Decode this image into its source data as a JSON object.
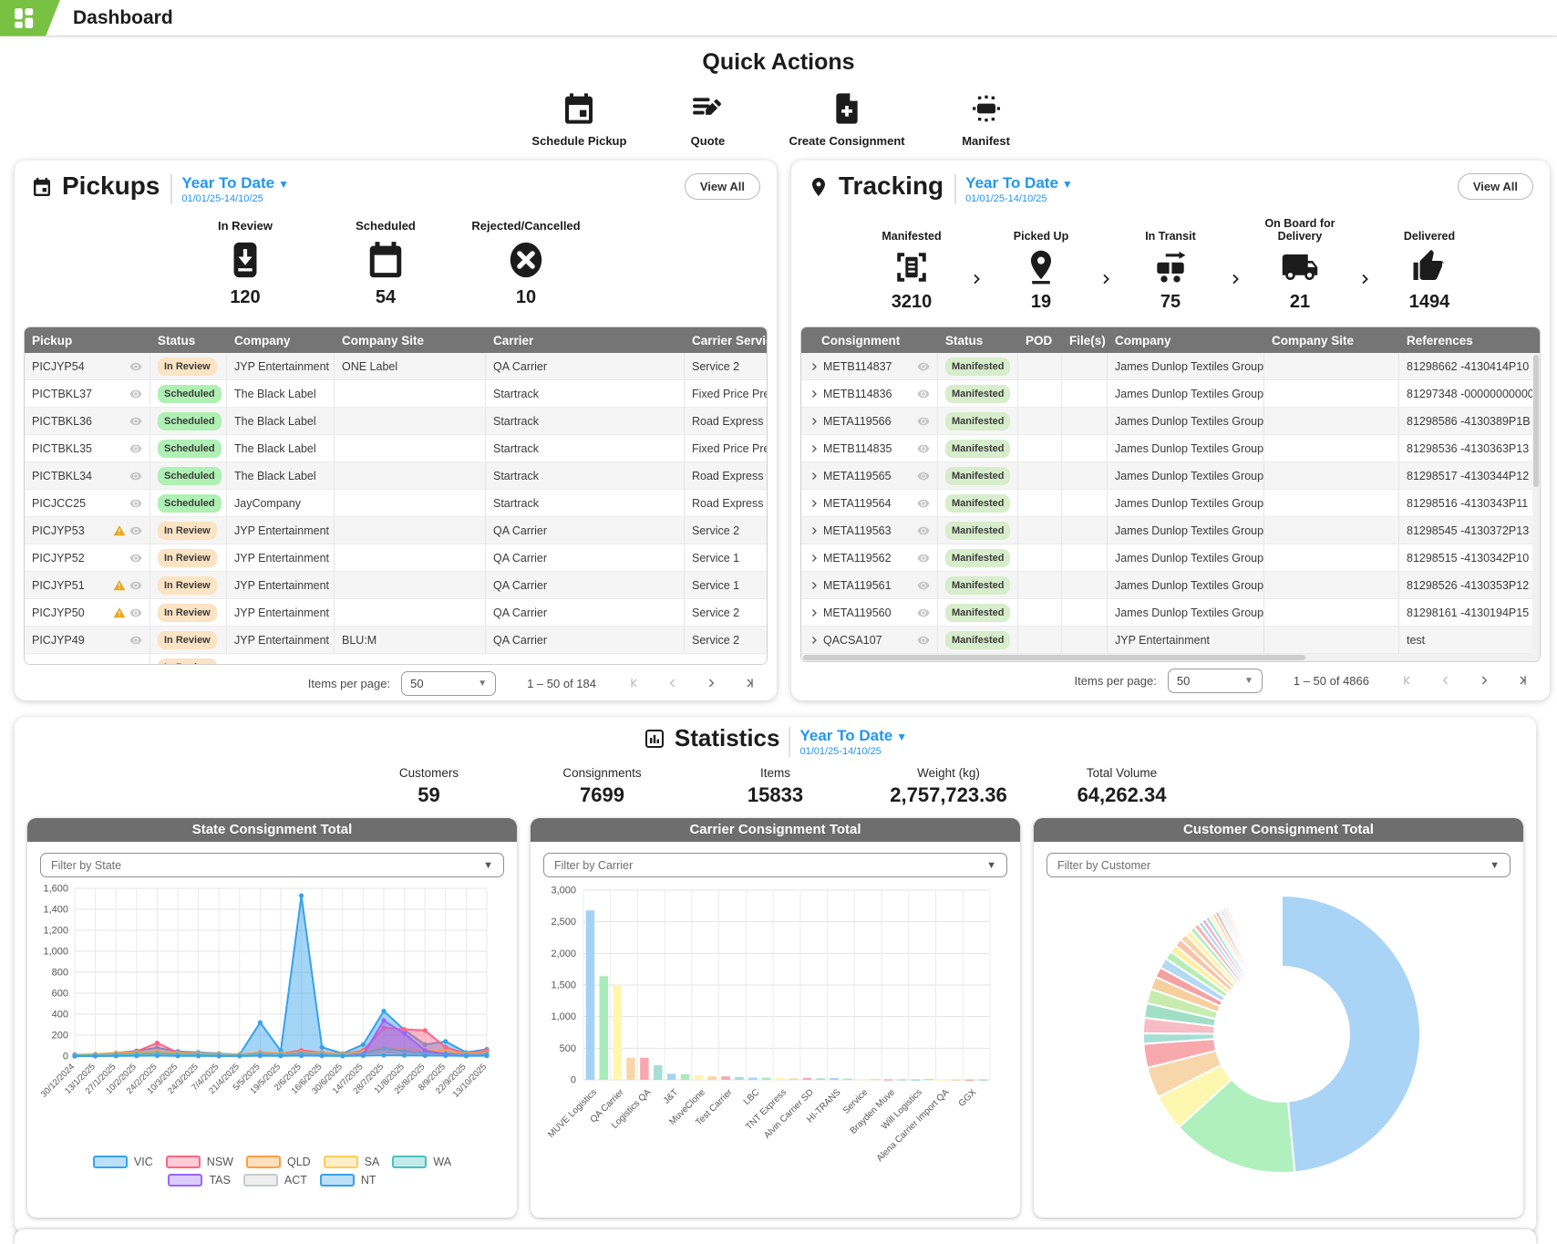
{
  "topbar": {
    "title": "Dashboard"
  },
  "quick_actions": {
    "title": "Quick Actions",
    "items": [
      {
        "label": "Schedule Pickup",
        "icon": "calendar-icon"
      },
      {
        "label": "Quote",
        "icon": "quote-pencil-icon"
      },
      {
        "label": "Create Consignment",
        "icon": "file-plus-icon"
      },
      {
        "label": "Manifest",
        "icon": "manifest-icon"
      }
    ]
  },
  "pickups": {
    "title": "Pickups",
    "period": {
      "label": "Year To Date",
      "range": "01/01/25-14/10/25"
    },
    "view_all": "View All",
    "stats": [
      {
        "label": "In Review",
        "value": "120",
        "icon": "inbox-down-icon"
      },
      {
        "label": "Scheduled",
        "value": "54",
        "icon": "calendar-icon"
      },
      {
        "label": "Rejected/Cancelled",
        "value": "10",
        "icon": "x-circle-icon"
      }
    ],
    "table": {
      "columns": [
        "Pickup",
        "Status",
        "Company",
        "Company Site",
        "Carrier",
        "Carrier Service"
      ],
      "rows": [
        {
          "id": "PICJYP54",
          "warn": false,
          "status": "In Review",
          "company": "JYP Entertainment",
          "site": "ONE Label",
          "carrier": "QA Carrier",
          "service": "Service 2"
        },
        {
          "id": "PICTBKL37",
          "warn": false,
          "status": "Scheduled",
          "company": "The Black Label",
          "site": "",
          "carrier": "Startrack",
          "service": "Fixed Price Prem"
        },
        {
          "id": "PICTBKL36",
          "warn": false,
          "status": "Scheduled",
          "company": "The Black Label",
          "site": "",
          "carrier": "Startrack",
          "service": "Road Express"
        },
        {
          "id": "PICTBKL35",
          "warn": false,
          "status": "Scheduled",
          "company": "The Black Label",
          "site": "",
          "carrier": "Startrack",
          "service": "Fixed Price Prem"
        },
        {
          "id": "PICTBKL34",
          "warn": false,
          "status": "Scheduled",
          "company": "The Black Label",
          "site": "",
          "carrier": "Startrack",
          "service": "Road Express"
        },
        {
          "id": "PICJCC25",
          "warn": false,
          "status": "Scheduled",
          "company": "JayCompany",
          "site": "",
          "carrier": "Startrack",
          "service": "Road Express"
        },
        {
          "id": "PICJYP53",
          "warn": true,
          "status": "In Review",
          "company": "JYP Entertainment",
          "site": "",
          "carrier": "QA Carrier",
          "service": "Service 2"
        },
        {
          "id": "PICJYP52",
          "warn": false,
          "status": "In Review",
          "company": "JYP Entertainment",
          "site": "",
          "carrier": "QA Carrier",
          "service": "Service 1"
        },
        {
          "id": "PICJYP51",
          "warn": true,
          "status": "In Review",
          "company": "JYP Entertainment",
          "site": "",
          "carrier": "QA Carrier",
          "service": "Service 1"
        },
        {
          "id": "PICJYP50",
          "warn": true,
          "status": "In Review",
          "company": "JYP Entertainment",
          "site": "",
          "carrier": "QA Carrier",
          "service": "Service 2"
        },
        {
          "id": "PICJYP49",
          "warn": false,
          "status": "In Review",
          "company": "JYP Entertainment",
          "site": "BLU:M",
          "carrier": "QA Carrier",
          "service": "Service 2"
        }
      ],
      "partial_row": {
        "status": "In Review"
      }
    },
    "pager": {
      "items_label": "Items per page:",
      "page_size": "50",
      "range": "1 – 50 of 184"
    }
  },
  "tracking": {
    "title": "Tracking",
    "period": {
      "label": "Year To Date",
      "range": "01/01/25-14/10/25"
    },
    "view_all": "View All",
    "stages": [
      {
        "label": "Manifested",
        "value": "3210",
        "icon": "scan-document-icon"
      },
      {
        "label": "Picked Up",
        "value": "19",
        "icon": "map-pin-icon"
      },
      {
        "label": "In Transit",
        "value": "75",
        "icon": "trolley-icon"
      },
      {
        "label": "On Board for Delivery",
        "value": "21",
        "icon": "truck-icon"
      },
      {
        "label": "Delivered",
        "value": "1494",
        "icon": "thumbs-up-icon"
      }
    ],
    "table": {
      "columns": [
        "Consignment",
        "Status",
        "POD",
        "File(s)",
        "Company",
        "Company Site",
        "References"
      ],
      "rows": [
        {
          "id": "METB114837",
          "status": "Manifested",
          "company": "James Dunlop Textiles Group",
          "site": "",
          "references": "81298662 -4130414P10"
        },
        {
          "id": "METB114836",
          "status": "Manifested",
          "company": "James Dunlop Textiles Group",
          "site": "",
          "references": "81297348 -000000000000"
        },
        {
          "id": "META119566",
          "status": "Manifested",
          "company": "James Dunlop Textiles Group",
          "site": "",
          "references": "81298586 -4130389P1B"
        },
        {
          "id": "METB114835",
          "status": "Manifested",
          "company": "James Dunlop Textiles Group",
          "site": "",
          "references": "81298536 -4130363P13"
        },
        {
          "id": "META119565",
          "status": "Manifested",
          "company": "James Dunlop Textiles Group",
          "site": "",
          "references": "81298517 -4130344P12"
        },
        {
          "id": "META119564",
          "status": "Manifested",
          "company": "James Dunlop Textiles Group",
          "site": "",
          "references": "81298516 -4130343P11"
        },
        {
          "id": "META119563",
          "status": "Manifested",
          "company": "James Dunlop Textiles Group",
          "site": "",
          "references": "81298545 -4130372P13"
        },
        {
          "id": "META119562",
          "status": "Manifested",
          "company": "James Dunlop Textiles Group",
          "site": "",
          "references": "81298515 -4130342P10"
        },
        {
          "id": "META119561",
          "status": "Manifested",
          "company": "James Dunlop Textiles Group",
          "site": "",
          "references": "81298526 -4130353P12"
        },
        {
          "id": "META119560",
          "status": "Manifested",
          "company": "James Dunlop Textiles Group",
          "site": "",
          "references": "81298161 -4130194P15"
        },
        {
          "id": "QACSA107",
          "status": "Manifested",
          "company": "JYP Entertainment",
          "site": "",
          "references": "test"
        }
      ]
    },
    "pager": {
      "items_label": "Items per page:",
      "page_size": "50",
      "range": "1 – 50 of 4866"
    }
  },
  "statistics": {
    "title": "Statistics",
    "period": {
      "label": "Year To Date",
      "range": "01/01/25-14/10/25"
    },
    "stats": [
      {
        "label": "Customers",
        "value": "59"
      },
      {
        "label": "Consignments",
        "value": "7699"
      },
      {
        "label": "Items",
        "value": "15833"
      },
      {
        "label": "Weight (kg)",
        "value": "2,757,723.36"
      },
      {
        "label": "Total Volume",
        "value": "64,262.34"
      }
    ]
  },
  "charts": {
    "state": {
      "filter_placeholder": "Filter by State"
    },
    "carrier": {
      "filter_placeholder": "Filter by Carrier"
    },
    "customer": {
      "filter_placeholder": "Filter by Customer"
    }
  },
  "chart_data": [
    {
      "type": "area",
      "title": "State Consignment Total",
      "x": [
        "30/12/2024",
        "13/1/2025",
        "27/1/2025",
        "10/2/2025",
        "24/2/2025",
        "10/3/2025",
        "24/3/2025",
        "7/4/2025",
        "21/4/2025",
        "5/5/2025",
        "19/5/2025",
        "2/6/2025",
        "16/6/2025",
        "30/6/2025",
        "14/7/2025",
        "28/7/2025",
        "11/8/2025",
        "25/8/2025",
        "8/9/2025",
        "22/9/2025",
        "13/10/2025"
      ],
      "ylim": [
        0,
        1600
      ],
      "ytick_step": 200,
      "grid": true,
      "legend_position": "bottom",
      "series": [
        {
          "name": "VIC",
          "color": "#36a2eb",
          "values": [
            15,
            10,
            30,
            50,
            80,
            45,
            35,
            25,
            15,
            320,
            50,
            1530,
            85,
            25,
            110,
            430,
            250,
            110,
            140,
            35,
            65
          ]
        },
        {
          "name": "NSW",
          "color": "#ff6384",
          "values": [
            8,
            15,
            25,
            45,
            125,
            35,
            25,
            15,
            12,
            35,
            25,
            55,
            35,
            18,
            55,
            270,
            255,
            245,
            85,
            25,
            55
          ]
        },
        {
          "name": "QLD",
          "color": "#ff9f40",
          "values": [
            12,
            20,
            30,
            35,
            45,
            30,
            25,
            20,
            18,
            30,
            25,
            35,
            30,
            22,
            40,
            85,
            65,
            55,
            45,
            25,
            35
          ]
        },
        {
          "name": "SA",
          "color": "#ffcd56",
          "values": [
            5,
            8,
            12,
            18,
            22,
            14,
            12,
            9,
            8,
            18,
            13,
            22,
            18,
            9,
            22,
            55,
            38,
            28,
            22,
            13,
            18
          ]
        },
        {
          "name": "WA",
          "color": "#4bc0c0",
          "values": [
            7,
            10,
            15,
            22,
            28,
            18,
            15,
            10,
            9,
            22,
            15,
            28,
            20,
            10,
            28,
            75,
            48,
            32,
            28,
            15,
            22
          ]
        },
        {
          "name": "TAS",
          "color": "#9966ff",
          "values": [
            0,
            0,
            4,
            4,
            7,
            4,
            4,
            2,
            2,
            7,
            4,
            9,
            7,
            4,
            13,
            340,
            215,
            55,
            18,
            7,
            9
          ]
        },
        {
          "name": "ACT",
          "color": "#c9cbcf",
          "values": [
            0,
            2,
            3,
            4,
            5,
            3,
            3,
            2,
            2,
            4,
            3,
            5,
            4,
            2,
            5,
            14,
            9,
            7,
            5,
            3,
            4
          ]
        },
        {
          "name": "NT",
          "color": "#36a2eb",
          "values": [
            0,
            1,
            2,
            3,
            4,
            2,
            2,
            1,
            1,
            3,
            2,
            4,
            3,
            1,
            4,
            9,
            7,
            5,
            4,
            2,
            3
          ]
        }
      ]
    },
    {
      "type": "bar",
      "title": "Carrier Consignment Total",
      "categories": [
        "MUVE Logistics",
        "QA Carrier",
        "Logistics QA",
        "J&T",
        "MuveClone",
        "Test Carrier",
        "LBC",
        "TNT Express",
        "Alvin Carrier SD",
        "HI-TRANS",
        "Service",
        "Brayden Muve",
        "Will Logistics",
        "Alena Carrier Import QA",
        "GGX"
      ],
      "note": "two bars per shown label (every other tick label hidden)",
      "values": [
        2680,
        1640,
        1500,
        350,
        350,
        230,
        95,
        90,
        75,
        55,
        55,
        45,
        35,
        35,
        30,
        25,
        30,
        25,
        30,
        20,
        15,
        15,
        10,
        10,
        8,
        15,
        5,
        8,
        5,
        8
      ],
      "bar_colors_cycle": [
        "#a3d3f7",
        "#a9ebb9",
        "#fdf6ad",
        "#f9d5a7",
        "#f8a8ae",
        "#a8ddd4"
      ],
      "ylim": [
        0,
        3000
      ],
      "ytick_step": 500,
      "grid": true
    },
    {
      "type": "doughnut",
      "title": "Customer Consignment Total",
      "labels_visible": false,
      "slices": [
        {
          "value": 48.5,
          "color": "#a9d4f5"
        },
        {
          "value": 14.8,
          "color": "#aff0be"
        },
        {
          "value": 4.2,
          "color": "#fdf7b0"
        },
        {
          "value": 3.6,
          "color": "#f8d6ac"
        },
        {
          "value": 2.8,
          "color": "#f7a9ad"
        },
        {
          "value": 1.2,
          "color": "#a6ded4"
        },
        {
          "value": 1.8,
          "color": "#f8bcc7"
        },
        {
          "value": 1.7,
          "color": "#a0dfc6"
        },
        {
          "value": 1.7,
          "color": "#c8ecae"
        },
        {
          "value": 1.5,
          "color": "#f6cf9e"
        },
        {
          "value": 1.2,
          "color": "#f3a2a2"
        },
        {
          "value": 1.2,
          "color": "#b5d9f2"
        },
        {
          "value": 1.0,
          "color": "#b6edb6"
        },
        {
          "value": 0.9,
          "color": "#fbf0a2"
        },
        {
          "value": 0.9,
          "color": "#f8c3a8"
        },
        {
          "value": 0.8,
          "color": "#f6d2a4"
        },
        {
          "value": 0.7,
          "color": "#fdf2aa"
        },
        {
          "value": 0.6,
          "color": "#bce9c4"
        },
        {
          "value": 0.6,
          "color": "#f7b2ba"
        },
        {
          "value": 0.5,
          "color": "#aad7f0"
        },
        {
          "value": 0.5,
          "color": "#f2aac6"
        },
        {
          "value": 0.5,
          "color": "#a8e0da"
        },
        {
          "value": 0.4,
          "color": "#fdf0b4"
        },
        {
          "value": 0.4,
          "color": "#f6c9a2"
        },
        {
          "value": 0.4,
          "color": "#f2a4ac"
        },
        {
          "value": 0.3,
          "color": "#b4eaba"
        },
        {
          "value": 0.3,
          "color": "#accdf0"
        },
        {
          "value": 0.3,
          "color": "#e7b6e3"
        },
        {
          "value": 0.3,
          "color": "#f8dab2"
        },
        {
          "value": 6.4,
          "color": null
        }
      ]
    }
  ],
  "accent_colors": {
    "brand_green": "#79c142",
    "link_blue": "#2196f3",
    "table_header_gray": "#757575",
    "badge_in_review": "#fbe3c3",
    "badge_scheduled": "#aff0b4",
    "badge_manifested": "#d8edcb"
  }
}
